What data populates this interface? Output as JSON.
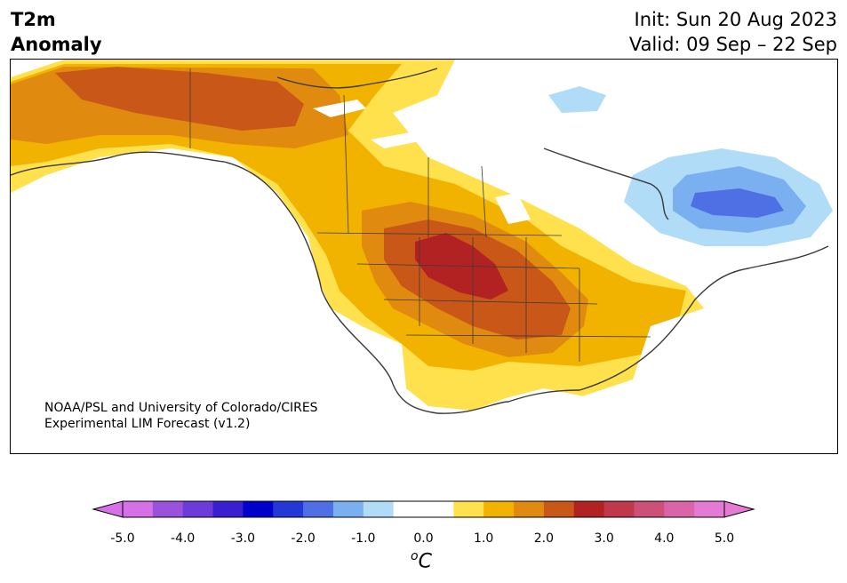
{
  "header": {
    "variable": "T2m",
    "subtitle": "Anomaly",
    "init": "Init: Sun 20 Aug 2023",
    "valid": "Valid: 09 Sep – 22 Sep"
  },
  "credit": {
    "line1": "NOAA/PSL and University of Colorado/CIRES",
    "line2": "Experimental LIM Forecast (v1.2)"
  },
  "colorbar": {
    "unit_base": "C",
    "unit_sup": "o",
    "ticks": [
      "-5.0",
      "-4.0",
      "-3.0",
      "-2.0",
      "-1.0",
      "0.0",
      "1.0",
      "2.0",
      "3.0",
      "4.0",
      "5.0"
    ],
    "colors": [
      "#d670e8",
      "#9a52dc",
      "#6c3bd8",
      "#3a1fd0",
      "#0000cc",
      "#2438d8",
      "#4f6fe4",
      "#7ab0f0",
      "#b0dcf8",
      "#ffffff",
      "#ffffff",
      "#ffe04d",
      "#f2b200",
      "#e08a10",
      "#c85718",
      "#b22222",
      "#c0384c",
      "#cc5078",
      "#da64a8",
      "#e47ad4"
    ],
    "extend_low": "#d670e8",
    "extend_high": "#e47ad4"
  }
}
